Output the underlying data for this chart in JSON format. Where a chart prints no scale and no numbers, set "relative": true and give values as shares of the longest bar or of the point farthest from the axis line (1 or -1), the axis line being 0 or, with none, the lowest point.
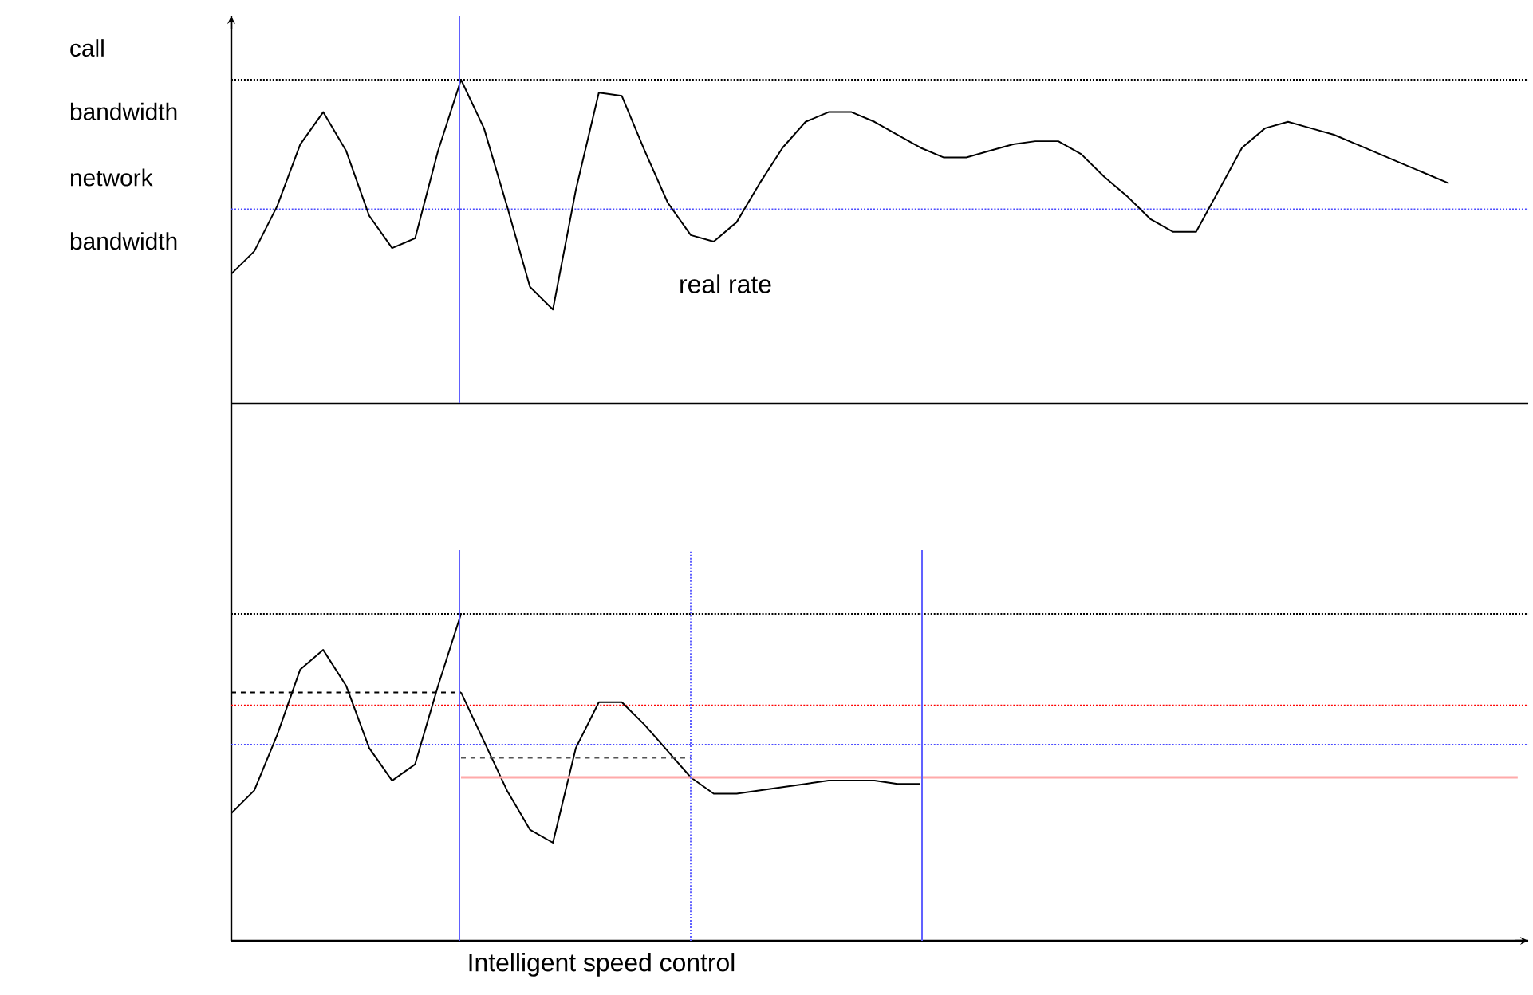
{
  "chart_data": [
    {
      "type": "line",
      "relative": true,
      "categories": [
        null,
        null,
        null,
        null,
        null,
        null,
        null,
        null,
        null,
        null,
        null,
        null,
        null,
        null,
        null,
        null,
        null,
        null,
        null,
        null,
        null,
        null,
        null,
        null,
        null,
        null,
        null,
        null,
        null,
        null,
        null,
        null,
        null,
        null,
        null,
        null,
        null,
        null,
        null,
        null,
        null,
        null,
        null,
        null,
        null,
        null,
        null,
        null,
        null,
        null,
        null,
        null,
        null,
        null,
        null,
        null,
        null
      ],
      "series": [
        {
          "color": "#000000",
          "values": [
            0.4,
            0.47,
            0.61,
            0.8,
            0.9,
            0.78,
            0.58,
            0.48,
            0.51,
            0.78,
            1.0,
            0.85,
            0.61,
            0.36,
            0.29,
            0.66,
            0.96,
            0.95,
            0.78,
            0.62,
            0.52,
            0.5,
            0.56,
            0.68,
            0.79,
            0.87,
            0.9,
            0.9,
            0.87,
            0.83,
            0.79,
            0.76,
            0.76,
            0.78,
            0.8,
            0.81,
            0.81,
            0.77,
            0.7,
            0.64,
            0.57,
            0.53,
            0.53,
            0.66,
            0.79,
            0.85,
            0.87,
            0.85,
            0.83,
            0.8,
            0.77,
            0.74,
            0.71,
            0.68,
            null,
            null,
            null
          ]
        }
      ],
      "ref_lines": [
        {
          "axis": "y",
          "value": 1.0,
          "label": "call bandwidth",
          "color": "#000000",
          "line_style": "dotted"
        },
        {
          "axis": "y",
          "value": 0.6,
          "label": "network bandwidth",
          "color": "#4a4aff",
          "line_style": "dotted"
        }
      ],
      "annotations": [
        "real rate"
      ],
      "line_style": "solid"
    },
    {
      "type": "line",
      "relative": true,
      "xlabel": "Intelligent speed control",
      "categories": [
        null,
        null,
        null,
        null,
        null,
        null,
        null,
        null,
        null,
        null,
        null,
        null,
        null,
        null,
        null,
        null,
        null,
        null,
        null,
        null,
        null,
        null,
        null,
        null,
        null,
        null,
        null,
        null,
        null,
        null,
        null,
        null,
        null,
        null,
        null,
        null,
        null,
        null,
        null,
        null,
        null,
        null,
        null,
        null,
        null,
        null,
        null,
        null,
        null,
        null,
        null,
        null,
        null,
        null,
        null,
        null,
        null
      ],
      "series": [
        {
          "color": "#000000",
          "line_style": "solid",
          "values": [
            0.39,
            0.46,
            0.63,
            0.83,
            0.89,
            0.78,
            0.59,
            0.49,
            0.54,
            0.78,
            1.0,
            null,
            null,
            null,
            null,
            null,
            null,
            null,
            null,
            null,
            null,
            null,
            null,
            null,
            null,
            null,
            null,
            null,
            null,
            null,
            null,
            null,
            null,
            null,
            null,
            null,
            null,
            null,
            null,
            null,
            null,
            null,
            null,
            null,
            null,
            null,
            null,
            null,
            null,
            null,
            null,
            null,
            null,
            null,
            null,
            null,
            null
          ]
        },
        {
          "color": "#000000",
          "line_style": "solid",
          "values": [
            null,
            null,
            null,
            null,
            null,
            null,
            null,
            null,
            null,
            null,
            0.76,
            0.61,
            0.46,
            0.34,
            0.3,
            0.59,
            0.73,
            0.73,
            0.66,
            0.58,
            0.5,
            0.45,
            0.45,
            0.46,
            0.47,
            0.48,
            0.49,
            0.49,
            0.49,
            0.48,
            0.48,
            null,
            null,
            null,
            null,
            null,
            null,
            null,
            null,
            null,
            null,
            null,
            null,
            null,
            null,
            null,
            null,
            null,
            null,
            null,
            null,
            null,
            null,
            null,
            null,
            null,
            null
          ]
        },
        {
          "color": "#000000",
          "line_style": "dashed",
          "values": [
            0.76,
            0.76,
            0.76,
            0.76,
            0.76,
            0.76,
            0.76,
            0.76,
            0.76,
            0.76,
            0.76,
            null,
            null,
            null,
            null,
            null,
            null,
            null,
            null,
            null,
            null,
            null,
            null,
            null,
            null,
            null,
            null,
            null,
            null,
            null,
            null,
            null,
            null,
            null,
            null,
            null,
            null,
            null,
            null,
            null,
            null,
            null,
            null,
            null,
            null,
            null,
            null,
            null,
            null,
            null,
            null,
            null,
            null,
            null,
            null,
            null,
            null
          ]
        },
        {
          "color": "#555555",
          "line_style": "dashed",
          "values": [
            null,
            null,
            null,
            null,
            null,
            null,
            null,
            null,
            null,
            null,
            0.56,
            0.56,
            0.56,
            0.56,
            0.56,
            0.56,
            0.56,
            0.56,
            0.56,
            0.56,
            0.56,
            null,
            null,
            null,
            null,
            null,
            null,
            null,
            null,
            null,
            null,
            null,
            null,
            null,
            null,
            null,
            null,
            null,
            null,
            null,
            null,
            null,
            null,
            null,
            null,
            null,
            null,
            null,
            null,
            null,
            null,
            null,
            null,
            null,
            null,
            null,
            null
          ]
        },
        {
          "color": "#ffaaaa",
          "line_style": "solid",
          "values": [
            null,
            null,
            null,
            null,
            null,
            null,
            null,
            null,
            null,
            null,
            0.5,
            0.5,
            0.5,
            0.5,
            0.5,
            0.5,
            0.5,
            0.5,
            0.5,
            0.5,
            0.5,
            0.5,
            0.5,
            0.5,
            0.5,
            0.5,
            0.5,
            0.5,
            0.5,
            0.5,
            0.5,
            0.5,
            0.5,
            0.5,
            0.5,
            0.5,
            0.5,
            0.5,
            0.5,
            0.5,
            0.5,
            0.5,
            0.5,
            0.5,
            0.5,
            0.5,
            0.5,
            0.5,
            0.5,
            0.5,
            0.5,
            0.5,
            0.5,
            0.5,
            0.5,
            0.5,
            0.5
          ]
        }
      ],
      "ref_lines": [
        {
          "axis": "y",
          "value": 1.0,
          "color": "#000000",
          "line_style": "dotted"
        },
        {
          "axis": "y",
          "value": 0.72,
          "color": "#ff0000",
          "line_style": "dotted"
        },
        {
          "axis": "y",
          "value": 0.6,
          "color": "#4a4aff",
          "line_style": "dotted"
        }
      ]
    }
  ]
}
